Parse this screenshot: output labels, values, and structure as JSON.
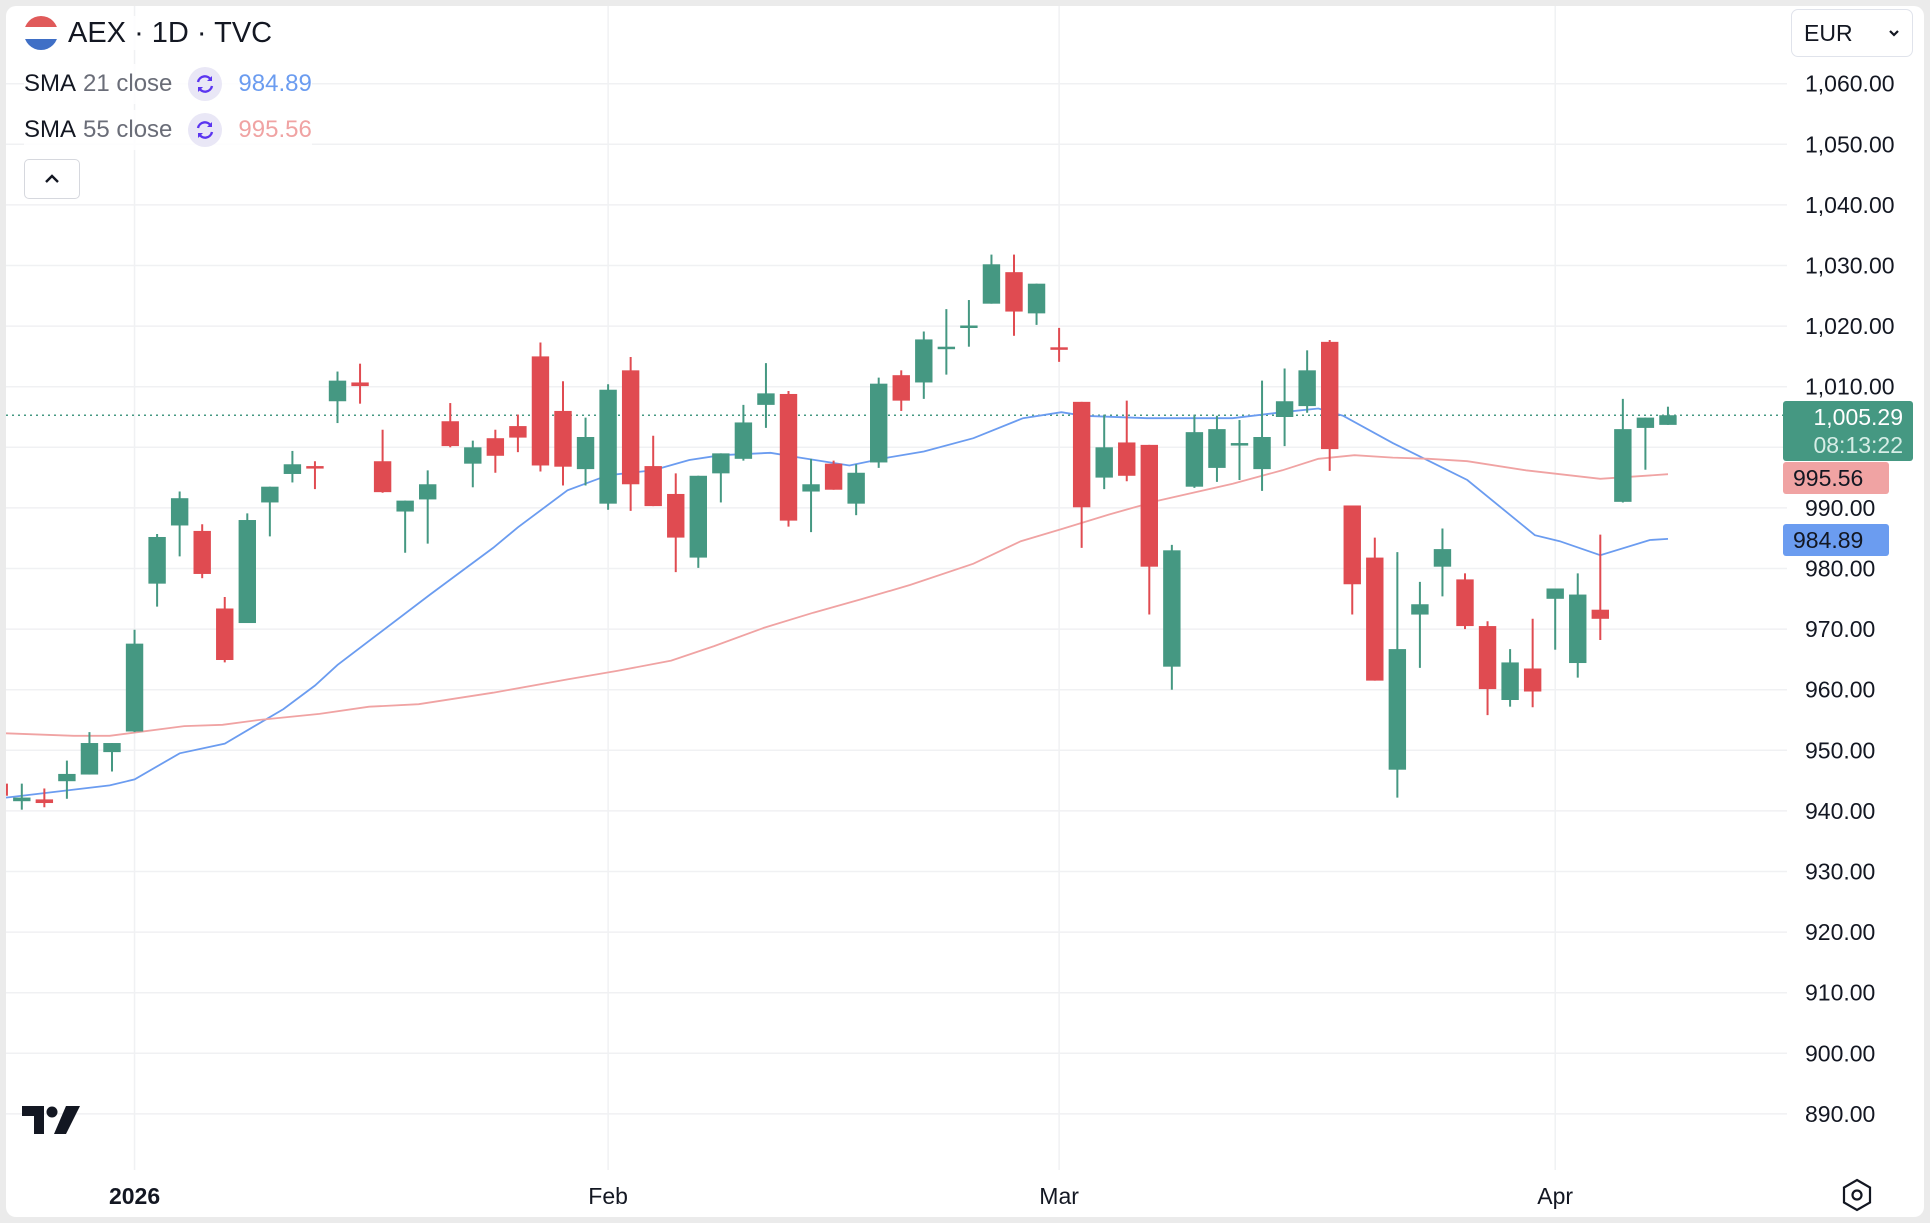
{
  "header": {
    "title": "AEX · 1D · TVC",
    "flag_colors": [
      "#e05a5a",
      "#ffffff",
      "#3f6fc6"
    ]
  },
  "indicators": [
    {
      "name": "SMA",
      "args": "21 close",
      "value": "984.89",
      "color": "#6b9cf0",
      "icon": "refresh-icon"
    },
    {
      "name": "SMA",
      "args": "55 close",
      "value": "995.56",
      "color": "#f0a3a3",
      "icon": "refresh-icon"
    }
  ],
  "currency": {
    "label": "EUR"
  },
  "price_tags": {
    "last_price": "1,005.29",
    "countdown": "08:13:22",
    "sma21": "984.89",
    "sma55": "995.56"
  },
  "colors": {
    "up": "#459882",
    "down": "#e04b51",
    "sma21": "#6b9cf0",
    "sma55": "#f0a3a3",
    "grid": "#f0f1f3"
  },
  "chart_data": {
    "type": "candlestick",
    "title": "AEX · 1D · TVC",
    "ylim": [
      880,
      1070
    ],
    "yticks": [
      "1,060.00",
      "1,050.00",
      "1,040.00",
      "1,030.00",
      "1,020.00",
      "1,010.00",
      "1,000.00",
      "990.00",
      "980.00",
      "970.00",
      "960.00",
      "950.00",
      "940.00",
      "930.00",
      "920.00",
      "910.00",
      "900.00",
      "890.00"
    ],
    "ytick_values": [
      1060,
      1050,
      1040,
      1030,
      1020,
      1010,
      1000,
      990,
      980,
      970,
      960,
      950,
      940,
      930,
      920,
      910,
      900,
      890
    ],
    "xticks": [
      {
        "label": "2026",
        "index": 7,
        "bold": true
      },
      {
        "label": "Feb",
        "index": 28
      },
      {
        "label": "Mar",
        "index": 48
      },
      {
        "label": "Apr",
        "index": 70
      }
    ],
    "last_price": 1005.29,
    "ohlc": [
      [
        944.5,
        945,
        942,
        942.5
      ],
      [
        941.6,
        944.5,
        940.2,
        942.2
      ],
      [
        941.9,
        943.7,
        940.6,
        941.3
      ],
      [
        944.9,
        948.3,
        942,
        946.1
      ],
      [
        946,
        953,
        946,
        951.2
      ],
      [
        949.7,
        951.2,
        946.5,
        951.2
      ],
      [
        953.1,
        969.9,
        953,
        967.6
      ],
      [
        977.5,
        985.7,
        973.7,
        985.2
      ],
      [
        987.1,
        992.7,
        982,
        991.6
      ],
      [
        986.2,
        987.3,
        978.4,
        979.1
      ],
      [
        973.4,
        975.3,
        964.5,
        964.9
      ],
      [
        971,
        989.1,
        971,
        988
      ],
      [
        990.9,
        993.5,
        985.3,
        993.5
      ],
      [
        995.6,
        999.4,
        994.2,
        997.2
      ],
      [
        996.9,
        997.7,
        993.1,
        996.6
      ],
      [
        1007.6,
        1012.5,
        1004,
        1011
      ],
      [
        1010.7,
        1013.8,
        1007.2,
        1010.1
      ],
      [
        997.7,
        1002.9,
        992.5,
        992.6
      ],
      [
        989.4,
        991.2,
        982.6,
        991.2
      ],
      [
        991.4,
        996.2,
        984.1,
        993.9
      ],
      [
        1004.3,
        1007.3,
        1000,
        1000.2
      ],
      [
        997.3,
        1001.1,
        993.4,
        1000
      ],
      [
        1001.5,
        1002.9,
        995.8,
        998.6
      ],
      [
        1003.5,
        1005.4,
        999.2,
        1001.6
      ],
      [
        1015,
        1017.3,
        996,
        997
      ],
      [
        1006,
        1010.9,
        993.7,
        996.8
      ],
      [
        996.4,
        1004.9,
        993.7,
        1001.7
      ],
      [
        990.7,
        1010.4,
        989.7,
        1009.5
      ],
      [
        1012.7,
        1014.9,
        989.5,
        993.9
      ],
      [
        996.9,
        1001.9,
        990.3,
        990.3
      ],
      [
        992.3,
        995.7,
        979.4,
        985.1
      ],
      [
        981.8,
        995.3,
        980.1,
        995.3
      ],
      [
        995.7,
        999,
        990.9,
        999
      ],
      [
        998.1,
        1007,
        997.8,
        1004.1
      ],
      [
        1007,
        1013.9,
        1003.2,
        1008.9
      ],
      [
        1008.8,
        1009.3,
        986.9,
        987.9
      ],
      [
        992.7,
        998.1,
        986,
        993.9
      ],
      [
        997.3,
        997.8,
        993,
        993
      ],
      [
        990.7,
        997.2,
        988.8,
        995.8
      ],
      [
        997.5,
        1011.5,
        996.6,
        1010.5
      ],
      [
        1011.9,
        1012.7,
        1006,
        1007.7
      ],
      [
        1010.7,
        1019.1,
        1008,
        1017.8
      ],
      [
        1016.5,
        1022.8,
        1012,
        1016.6
      ],
      [
        1020,
        1024.3,
        1016.6,
        1020.1
      ],
      [
        1023.7,
        1031.8,
        1023.7,
        1030.2
      ],
      [
        1028.9,
        1031.8,
        1018.4,
        1022.4
      ],
      [
        1022.1,
        1027,
        1020.2,
        1027
      ],
      [
        1016.5,
        1019.7,
        1014.1,
        1016.3
      ],
      [
        1007.5,
        1007.5,
        983.4,
        990.1
      ],
      [
        995,
        1005.4,
        993.1,
        1000
      ],
      [
        1000.8,
        1007.7,
        994.4,
        995.3
      ],
      [
        1000.4,
        1000.4,
        972.4,
        980.3
      ],
      [
        963.8,
        983.9,
        960,
        983
      ],
      [
        993.5,
        1005.4,
        993.3,
        1002.5
      ],
      [
        996.6,
        1005.2,
        994.3,
        1003
      ],
      [
        1000.6,
        1004.5,
        994.6,
        1000.7
      ],
      [
        996.4,
        1011,
        992.8,
        1001.7
      ],
      [
        1005,
        1013,
        1000.2,
        1007.6
      ],
      [
        1006.8,
        1016,
        1005.7,
        1012.7
      ],
      [
        1017.4,
        1017.7,
        996.1,
        999.7
      ],
      [
        990.4,
        990.4,
        972.4,
        977.4
      ],
      [
        981.8,
        985.1,
        961.5,
        961.5
      ],
      [
        946.8,
        982.7,
        942.2,
        966.7
      ],
      [
        972.4,
        977.8,
        963.6,
        974.1
      ],
      [
        980.3,
        986.6,
        975.4,
        983.2
      ],
      [
        978.2,
        979.2,
        970,
        970.5
      ],
      [
        970.5,
        971.3,
        955.8,
        960.1
      ],
      [
        958.3,
        966.7,
        957.2,
        964.5
      ],
      [
        963.5,
        971.7,
        957.1,
        959.7
      ],
      [
        975,
        976.7,
        966.6,
        976.7
      ],
      [
        964.4,
        979.2,
        962,
        975.7
      ],
      [
        973.2,
        985.6,
        968.2,
        971.7
      ],
      [
        991,
        1008,
        990.9,
        1003
      ],
      [
        1003.2,
        1004.9,
        996.3,
        1004.9
      ],
      [
        1003.7,
        1006.7,
        1003.7,
        1005.29
      ]
    ],
    "series": [
      {
        "name": "SMA 21 close",
        "points": [
          [
            1.3,
            942.2
          ],
          [
            5.9,
            944.2
          ],
          [
            7,
            945.2
          ],
          [
            9,
            949.5
          ],
          [
            11,
            951.1
          ],
          [
            13.6,
            956.8
          ],
          [
            15,
            960.7
          ],
          [
            16,
            964.1
          ],
          [
            20.1,
            975.7
          ],
          [
            22.9,
            983.4
          ],
          [
            24,
            986.8
          ],
          [
            26.2,
            992.9
          ],
          [
            28,
            995.4
          ],
          [
            30,
            996.2
          ],
          [
            31.6,
            997.9
          ],
          [
            33,
            998.7
          ],
          [
            35.2,
            999.1
          ],
          [
            36.5,
            998.3
          ],
          [
            38.7,
            997
          ],
          [
            40.4,
            998.3
          ],
          [
            42,
            999.3
          ],
          [
            44.2,
            1001.5
          ],
          [
            46.4,
            1004.8
          ],
          [
            48.1,
            1005.8
          ],
          [
            49.1,
            1005.2
          ],
          [
            51.9,
            1004.8
          ],
          [
            55.7,
            1004.8
          ],
          [
            57.9,
            1005.8
          ],
          [
            59.5,
            1006.4
          ],
          [
            60.6,
            1005.2
          ],
          [
            62.8,
            1000.7
          ],
          [
            64.7,
            997.2
          ],
          [
            66.1,
            994.6
          ],
          [
            69.1,
            985.5
          ],
          [
            70.2,
            984.5
          ],
          [
            72,
            982.2
          ],
          [
            74.2,
            984.7
          ],
          [
            75,
            984.89
          ]
        ]
      },
      {
        "name": "SMA 55 close",
        "points": [
          [
            1.3,
            952.8
          ],
          [
            4.3,
            952.4
          ],
          [
            5.9,
            952.4
          ],
          [
            9.2,
            954
          ],
          [
            10.9,
            954.2
          ],
          [
            12.5,
            955
          ],
          [
            15.2,
            956
          ],
          [
            17.4,
            957.2
          ],
          [
            19.6,
            957.6
          ],
          [
            22.9,
            959.5
          ],
          [
            26.2,
            961.7
          ],
          [
            28.4,
            963.1
          ],
          [
            30.8,
            964.8
          ],
          [
            32.7,
            967.2
          ],
          [
            34.9,
            970.2
          ],
          [
            37.1,
            972.7
          ],
          [
            39.2,
            974.9
          ],
          [
            41.4,
            977.3
          ],
          [
            44.2,
            980.8
          ],
          [
            46.3,
            984.5
          ],
          [
            48.1,
            986.5
          ],
          [
            50.2,
            988.9
          ],
          [
            52.4,
            991.2
          ],
          [
            55.7,
            994
          ],
          [
            57.9,
            996.2
          ],
          [
            59.5,
            998.1
          ],
          [
            61.1,
            998.7
          ],
          [
            62.8,
            998.3
          ],
          [
            64.4,
            998.1
          ],
          [
            66.1,
            997.7
          ],
          [
            68.7,
            996.2
          ],
          [
            72,
            994.8
          ],
          [
            75,
            995.56
          ]
        ]
      }
    ]
  }
}
